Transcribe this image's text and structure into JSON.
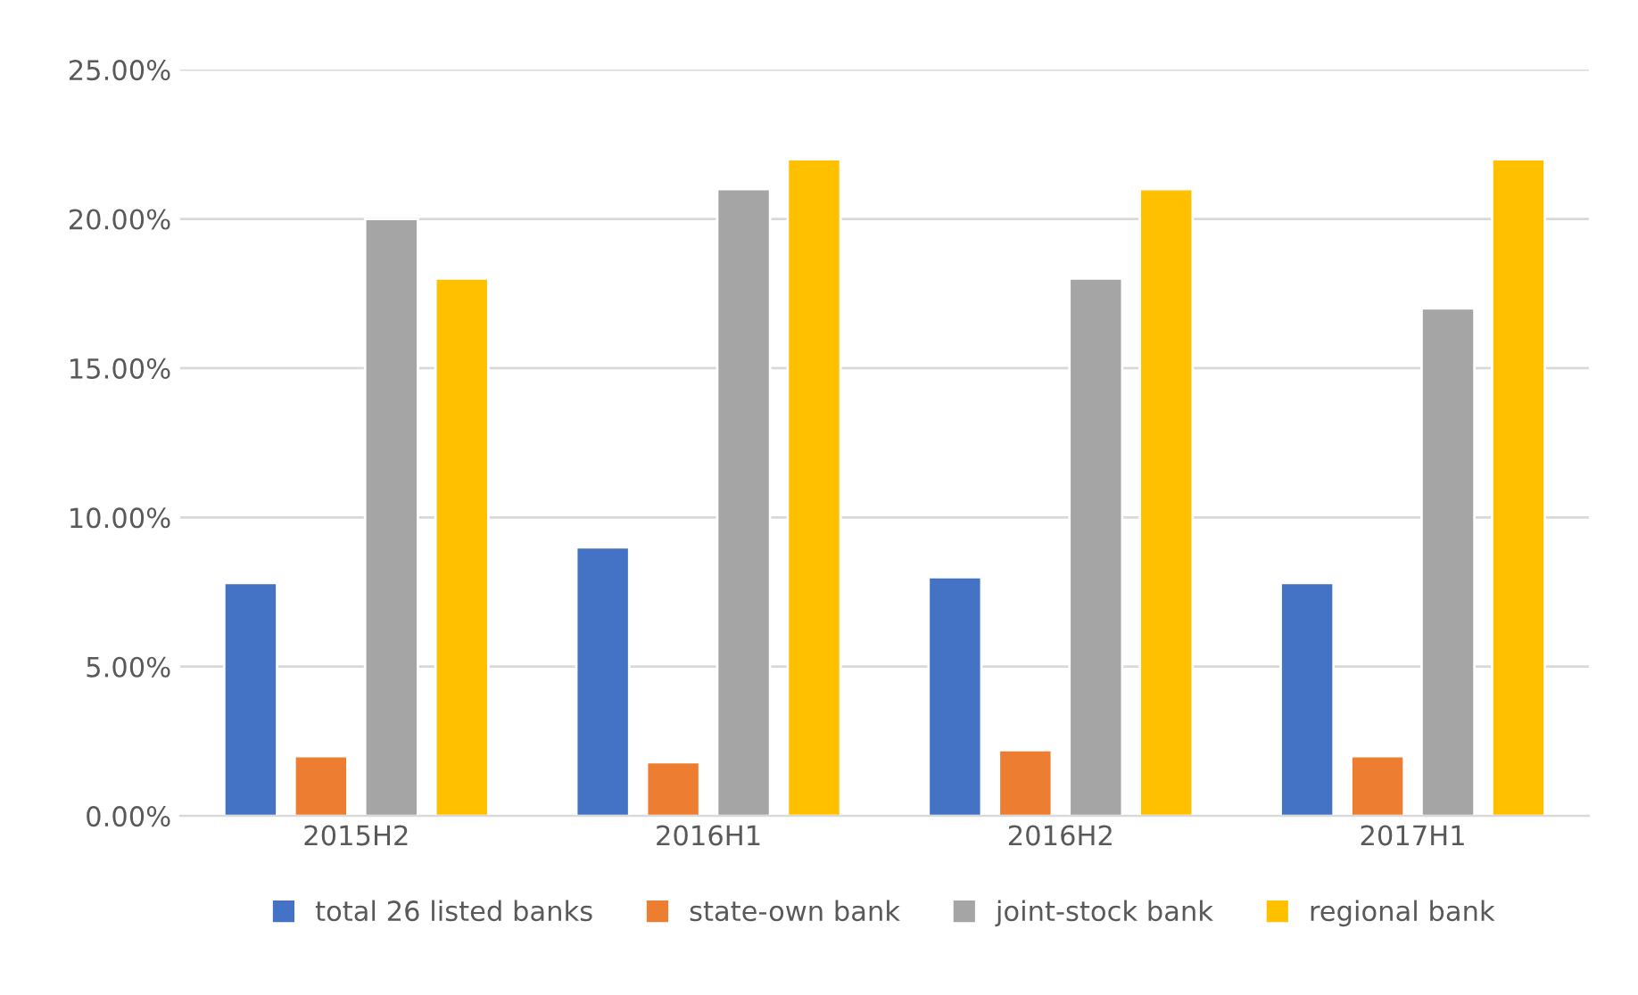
{
  "chart_data": {
    "type": "bar",
    "categories": [
      "2015H2",
      "2016H1",
      "2016H2",
      "2017H1"
    ],
    "series": [
      {
        "name": "total 26 listed banks",
        "color": "#4472c4",
        "values": [
          7.8,
          9.0,
          8.0,
          7.8
        ]
      },
      {
        "name": "state-own bank",
        "color": "#ed7d31",
        "values": [
          2.0,
          1.8,
          2.2,
          2.0
        ]
      },
      {
        "name": "joint-stock bank",
        "color": "#a5a5a5",
        "values": [
          20.0,
          21.0,
          18.0,
          17.0
        ]
      },
      {
        "name": "regional bank",
        "color": "#ffc000",
        "values": [
          18.0,
          22.0,
          21.0,
          22.0
        ]
      }
    ],
    "ylim": [
      0,
      25
    ],
    "yticks": [
      {
        "value": 0,
        "label": "0.00%"
      },
      {
        "value": 5,
        "label": "5.00%"
      },
      {
        "value": 10,
        "label": "10.00%"
      },
      {
        "value": 15,
        "label": "15.00%"
      },
      {
        "value": 20,
        "label": "20.00%"
      },
      {
        "value": 25,
        "label": "25.00%"
      }
    ],
    "grid": "y",
    "legend": "bottom"
  }
}
